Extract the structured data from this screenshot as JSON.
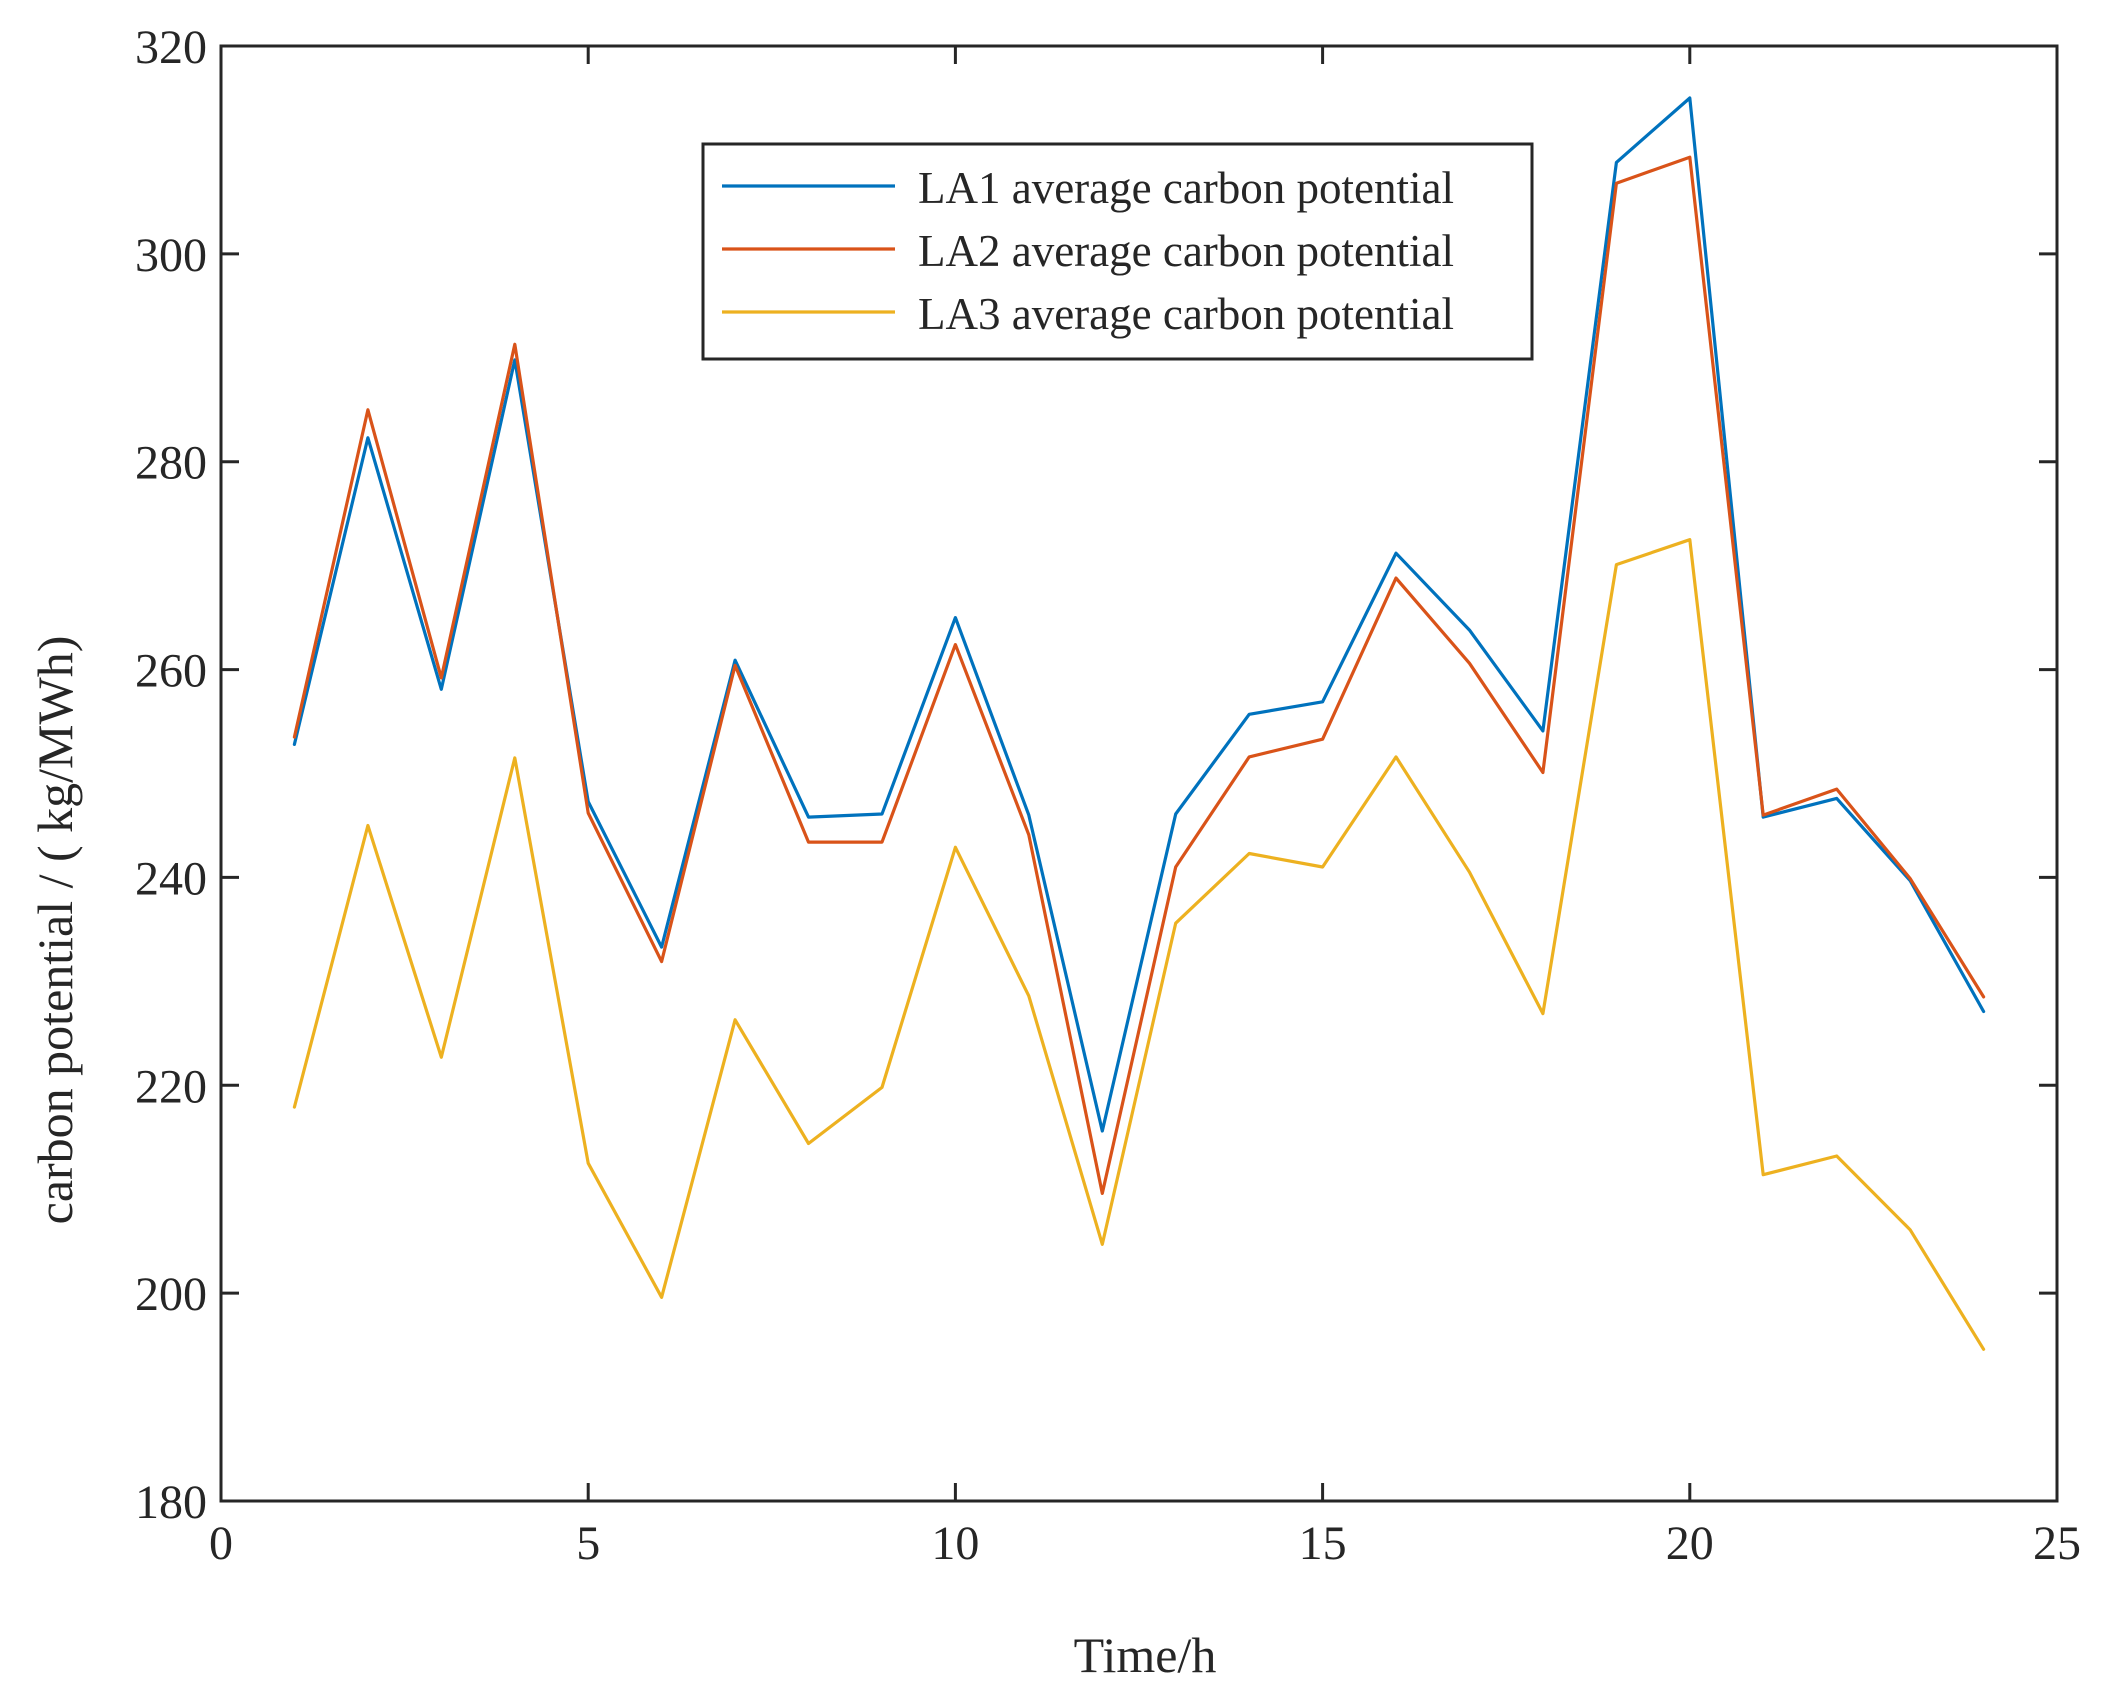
{
  "chart_data": {
    "type": "line",
    "xlabel": "Time/h",
    "ylabel": "carbon potential / ( kg/MWh)",
    "xlim": [
      0,
      25
    ],
    "ylim": [
      180,
      320
    ],
    "xticks": [
      0,
      5,
      10,
      15,
      20,
      25
    ],
    "yticks": [
      180,
      200,
      220,
      240,
      260,
      280,
      300,
      320
    ],
    "grid": false,
    "legend_position": "top-right",
    "x": [
      1,
      2,
      3,
      4,
      5,
      6,
      7,
      8,
      9,
      10,
      11,
      12,
      13,
      14,
      15,
      16,
      17,
      18,
      19,
      20,
      21,
      22,
      23,
      24
    ],
    "series": [
      {
        "name": "LA1 average carbon potential",
        "color": "#0072BD",
        "values": [
          252.8,
          282.3,
          258.1,
          289.8,
          247.3,
          233.3,
          260.9,
          245.8,
          246.1,
          265.0,
          246.0,
          215.6,
          246.1,
          255.7,
          256.9,
          271.2,
          263.8,
          254.1,
          308.8,
          315.0,
          245.8,
          247.6,
          239.7,
          227.1
        ]
      },
      {
        "name": "LA2 average carbon potential",
        "color": "#D95319",
        "values": [
          253.5,
          285.0,
          259.2,
          291.3,
          246.2,
          231.9,
          260.4,
          243.4,
          243.4,
          262.4,
          244.1,
          209.6,
          241.0,
          251.6,
          253.3,
          268.8,
          260.6,
          250.1,
          306.8,
          309.3,
          246.0,
          248.5,
          239.9,
          228.5
        ]
      },
      {
        "name": "LA3 average carbon potential",
        "color": "#EDB120",
        "values": [
          217.9,
          245.0,
          222.7,
          251.5,
          212.5,
          199.6,
          226.3,
          214.4,
          219.8,
          242.9,
          228.6,
          204.7,
          235.6,
          242.3,
          241.0,
          251.6,
          240.5,
          226.9,
          270.1,
          272.5,
          211.4,
          213.2,
          206.1,
          194.6
        ]
      }
    ]
  }
}
